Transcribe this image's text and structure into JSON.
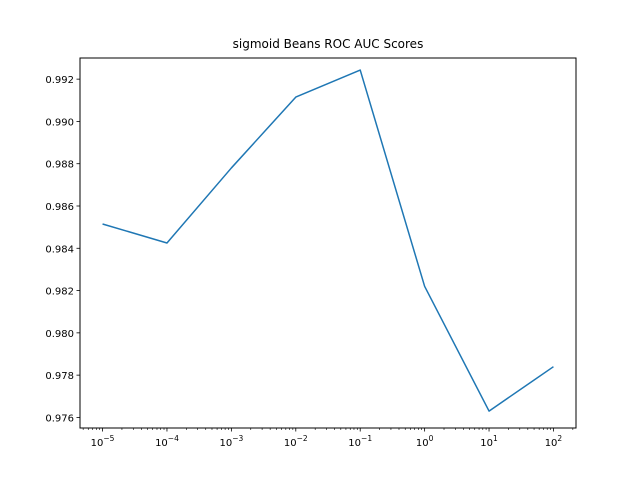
{
  "chart_data": {
    "type": "line",
    "title": "sigmoid Beans ROC AUC Scores",
    "xlabel": "",
    "ylabel": "",
    "x_scale": "log",
    "x": [
      1e-05,
      0.0001,
      0.001,
      0.01,
      0.1,
      1,
      10,
      100
    ],
    "x_tick_exponents": [
      "−5",
      "−4",
      "−3",
      "−2",
      "−1",
      "0",
      "1",
      "2"
    ],
    "y_ticks": [
      "0.976",
      "0.978",
      "0.980",
      "0.982",
      "0.984",
      "0.986",
      "0.988",
      "0.990",
      "0.992"
    ],
    "series": [
      {
        "color": "#1f77b4",
        "values": [
          0.98515,
          0.98425,
          0.9878,
          0.99115,
          0.99243,
          0.9822,
          0.9763,
          0.9784
        ]
      }
    ],
    "xlim_exponent": [
      -5.35,
      2.35
    ],
    "ylim": [
      0.9755,
      0.993
    ],
    "grid": false,
    "legend": "none"
  }
}
